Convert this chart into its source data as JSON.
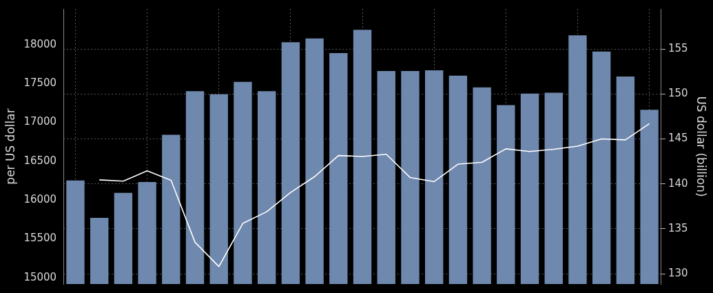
{
  "chart_data": {
    "type": "bar",
    "ylabel": "per US dollar",
    "y2label": "US dollar (billion)",
    "categories": [
      null,
      null,
      null,
      null,
      null,
      null,
      null,
      null,
      null,
      null,
      null,
      null,
      null,
      null,
      null,
      null,
      null,
      null,
      null,
      null,
      null,
      null,
      null,
      null,
      null
    ],
    "series": [
      {
        "color": "#6f88ad",
        "values": [
          16250,
          15770,
          16090,
          16230,
          16840,
          17400,
          17360,
          17520,
          17400,
          18030,
          18080,
          17890,
          18190,
          17660,
          17660,
          17670,
          17600,
          17450,
          17220,
          17370,
          17380,
          18120,
          17910,
          17590,
          17160
        ]
      },
      {
        "type": "line",
        "axis": "y2",
        "color": "#ffffff",
        "marker": "none",
        "line_style": "solid",
        "values": [
          null,
          140.45,
          140.3,
          141.45,
          140.4,
          133.5,
          130.8,
          135.6,
          136.9,
          139.05,
          140.8,
          143.15,
          143.05,
          143.3,
          140.7,
          140.25,
          142.2,
          142.4,
          143.9,
          143.6,
          143.85,
          144.2,
          145.0,
          144.9,
          146.7
        ]
      }
    ],
    "ylim": [
      14917,
      18459
    ],
    "yticks": [
      15000,
      15500,
      16000,
      16500,
      17000,
      17500,
      18000
    ],
    "y2lim": [
      128.85,
      159.47
    ],
    "y2ticks": [
      130,
      135,
      140,
      145,
      150,
      155
    ],
    "grid": true,
    "legend": false,
    "tick_labels": "y"
  }
}
